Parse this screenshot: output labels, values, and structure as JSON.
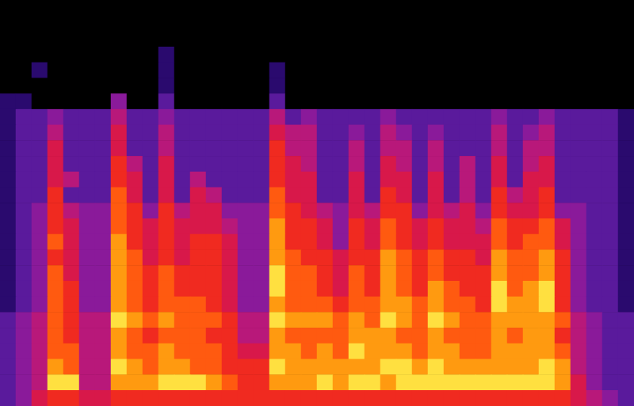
{
  "chart_data": {
    "type": "heatmap",
    "tick_labels": false,
    "grid": false,
    "zlim": [
      0,
      9
    ],
    "cells": [
      [
        0,
        0,
        0,
        0,
        0,
        0,
        0,
        0,
        0,
        0,
        0,
        0,
        0,
        0,
        0,
        0,
        0,
        0,
        0,
        0,
        0,
        0,
        0,
        0,
        0,
        0,
        0,
        0,
        0,
        0,
        0,
        0,
        0,
        0,
        0,
        0,
        0,
        0,
        0,
        0
      ],
      [
        0,
        0,
        0,
        0,
        0,
        0,
        0,
        0,
        0,
        0,
        0,
        0,
        0,
        0,
        0,
        0,
        0,
        0,
        0,
        0,
        0,
        0,
        0,
        0,
        0,
        0,
        0,
        0,
        0,
        0,
        0,
        0,
        0,
        0,
        0,
        0,
        0,
        0,
        0,
        0
      ],
      [
        0,
        0,
        0,
        0,
        0,
        0,
        0,
        0,
        0,
        0,
        0,
        0,
        0,
        0,
        0,
        0,
        0,
        0,
        0,
        0,
        0,
        0,
        0,
        0,
        0,
        0,
        0,
        0,
        0,
        0,
        0,
        0,
        0,
        0,
        0,
        0,
        0,
        0,
        0,
        0
      ],
      [
        0,
        0,
        0,
        0,
        0,
        0,
        0,
        0,
        0,
        0,
        1,
        0,
        0,
        0,
        0,
        0,
        0,
        0,
        0,
        0,
        0,
        0,
        0,
        0,
        0,
        0,
        0,
        0,
        0,
        0,
        0,
        0,
        0,
        0,
        0,
        0,
        0,
        0,
        0,
        0
      ],
      [
        0,
        0,
        1,
        0,
        0,
        0,
        0,
        0,
        0,
        0,
        1,
        0,
        0,
        0,
        0,
        0,
        0,
        1,
        0,
        0,
        0,
        0,
        0,
        0,
        0,
        0,
        0,
        0,
        0,
        0,
        0,
        0,
        0,
        0,
        0,
        0,
        0,
        0,
        0,
        0
      ],
      [
        0,
        0,
        0,
        0,
        0,
        0,
        0,
        0,
        0,
        0,
        1,
        0,
        0,
        0,
        0,
        0,
        0,
        1,
        0,
        0,
        0,
        0,
        0,
        0,
        0,
        0,
        0,
        0,
        0,
        0,
        0,
        0,
        0,
        0,
        0,
        0,
        0,
        0,
        0,
        0
      ],
      [
        1,
        1,
        0,
        0,
        0,
        0,
        0,
        3,
        0,
        0,
        2,
        0,
        0,
        0,
        0,
        0,
        0,
        2,
        0,
        0,
        0,
        0,
        0,
        0,
        0,
        0,
        0,
        0,
        0,
        0,
        0,
        0,
        0,
        0,
        0,
        0,
        0,
        0,
        0,
        0
      ],
      [
        1,
        2,
        2,
        3,
        2,
        2,
        2,
        4,
        2,
        2,
        3,
        2,
        2,
        2,
        2,
        2,
        2,
        4,
        2,
        3,
        2,
        2,
        2,
        2,
        3,
        2,
        2,
        2,
        2,
        2,
        2,
        3,
        2,
        2,
        3,
        2,
        2,
        2,
        2,
        1
      ],
      [
        1,
        2,
        2,
        4,
        2,
        2,
        2,
        5,
        2,
        2,
        4,
        2,
        2,
        2,
        2,
        2,
        2,
        5,
        4,
        4,
        2,
        2,
        3,
        2,
        4,
        3,
        2,
        3,
        2,
        2,
        2,
        4,
        2,
        3,
        4,
        2,
        2,
        2,
        2,
        1
      ],
      [
        1,
        2,
        2,
        5,
        2,
        2,
        2,
        5,
        2,
        2,
        4,
        2,
        2,
        2,
        2,
        2,
        2,
        6,
        4,
        4,
        2,
        2,
        4,
        2,
        4,
        4,
        2,
        4,
        2,
        2,
        2,
        4,
        2,
        4,
        4,
        2,
        2,
        2,
        2,
        1
      ],
      [
        1,
        2,
        2,
        5,
        2,
        2,
        2,
        6,
        4,
        2,
        5,
        2,
        2,
        2,
        2,
        2,
        2,
        6,
        5,
        4,
        2,
        2,
        4,
        2,
        5,
        4,
        2,
        4,
        2,
        4,
        2,
        5,
        2,
        4,
        5,
        2,
        2,
        2,
        2,
        1
      ],
      [
        1,
        2,
        2,
        5,
        4,
        2,
        2,
        6,
        5,
        2,
        5,
        2,
        4,
        2,
        2,
        2,
        2,
        6,
        5,
        5,
        2,
        2,
        5,
        2,
        5,
        5,
        2,
        5,
        2,
        4,
        2,
        5,
        2,
        5,
        5,
        2,
        2,
        2,
        2,
        1
      ],
      [
        1,
        2,
        2,
        6,
        2,
        2,
        2,
        7,
        5,
        2,
        5,
        2,
        5,
        4,
        2,
        2,
        2,
        7,
        5,
        5,
        2,
        2,
        5,
        2,
        6,
        5,
        2,
        5,
        2,
        4,
        2,
        6,
        4,
        5,
        6,
        2,
        2,
        2,
        2,
        1
      ],
      [
        1,
        2,
        3,
        6,
        4,
        3,
        3,
        7,
        6,
        3,
        6,
        4,
        5,
        5,
        3,
        3,
        3,
        7,
        6,
        5,
        4,
        3,
        5,
        4,
        6,
        6,
        3,
        5,
        4,
        5,
        3,
        6,
        5,
        5,
        6,
        3,
        3,
        2,
        2,
        1
      ],
      [
        1,
        2,
        3,
        6,
        5,
        3,
        3,
        7,
        6,
        5,
        6,
        5,
        5,
        5,
        4,
        3,
        3,
        8,
        6,
        6,
        5,
        3,
        6,
        5,
        7,
        6,
        5,
        6,
        5,
        5,
        4,
        7,
        6,
        6,
        7,
        5,
        3,
        2,
        2,
        1
      ],
      [
        1,
        2,
        3,
        7,
        5,
        3,
        3,
        8,
        6,
        5,
        6,
        5,
        6,
        6,
        5,
        3,
        3,
        8,
        6,
        6,
        5,
        3,
        6,
        5,
        7,
        6,
        5,
        6,
        5,
        5,
        5,
        7,
        6,
        7,
        7,
        5,
        3,
        2,
        2,
        1
      ],
      [
        1,
        2,
        3,
        6,
        5,
        3,
        3,
        8,
        7,
        5,
        6,
        5,
        6,
        6,
        5,
        3,
        3,
        8,
        7,
        6,
        6,
        5,
        6,
        6,
        8,
        7,
        6,
        7,
        6,
        6,
        5,
        8,
        7,
        7,
        8,
        6,
        3,
        2,
        2,
        1
      ],
      [
        1,
        2,
        3,
        7,
        5,
        3,
        3,
        8,
        7,
        6,
        7,
        6,
        6,
        6,
        5,
        3,
        3,
        9,
        7,
        7,
        6,
        5,
        7,
        6,
        8,
        7,
        6,
        7,
        6,
        6,
        6,
        8,
        7,
        7,
        8,
        6,
        3,
        2,
        2,
        1
      ],
      [
        1,
        2,
        3,
        7,
        6,
        3,
        3,
        8,
        7,
        6,
        7,
        6,
        6,
        6,
        5,
        3,
        3,
        9,
        7,
        7,
        6,
        5,
        7,
        6,
        8,
        7,
        6,
        8,
        7,
        6,
        6,
        9,
        7,
        8,
        9,
        6,
        3,
        2,
        2,
        1
      ],
      [
        1,
        2,
        3,
        7,
        6,
        3,
        3,
        8,
        7,
        6,
        7,
        7,
        7,
        6,
        5,
        3,
        3,
        8,
        7,
        7,
        7,
        6,
        7,
        7,
        8,
        8,
        7,
        8,
        7,
        7,
        6,
        9,
        8,
        8,
        9,
        6,
        3,
        2,
        2,
        1
      ],
      [
        2,
        3,
        4,
        7,
        6,
        4,
        4,
        9,
        8,
        7,
        8,
        7,
        7,
        7,
        6,
        4,
        4,
        9,
        8,
        8,
        8,
        7,
        8,
        7,
        9,
        8,
        7,
        9,
        8,
        7,
        7,
        8,
        8,
        8,
        8,
        7,
        4,
        3,
        2,
        2
      ],
      [
        2,
        3,
        4,
        7,
        6,
        4,
        4,
        8,
        7,
        6,
        7,
        7,
        7,
        6,
        6,
        4,
        4,
        8,
        7,
        7,
        7,
        7,
        8,
        8,
        8,
        7,
        7,
        8,
        7,
        7,
        7,
        8,
        7,
        8,
        8,
        6,
        4,
        3,
        2,
        2
      ],
      [
        2,
        3,
        4,
        7,
        7,
        4,
        4,
        8,
        7,
        7,
        8,
        7,
        7,
        7,
        6,
        5,
        5,
        8,
        8,
        7,
        8,
        7,
        9,
        8,
        8,
        8,
        7,
        8,
        8,
        7,
        7,
        8,
        8,
        8,
        8,
        7,
        4,
        3,
        2,
        2
      ],
      [
        2,
        3,
        4,
        8,
        7,
        4,
        4,
        9,
        8,
        7,
        8,
        8,
        7,
        7,
        6,
        6,
        6,
        9,
        8,
        8,
        8,
        8,
        8,
        8,
        9,
        9,
        8,
        9,
        8,
        8,
        8,
        8,
        8,
        8,
        9,
        8,
        4,
        3,
        2,
        2
      ],
      [
        2,
        3,
        4,
        9,
        9,
        4,
        4,
        8,
        8,
        8,
        9,
        9,
        9,
        8,
        7,
        6,
        6,
        8,
        8,
        8,
        9,
        8,
        9,
        9,
        8,
        9,
        9,
        9,
        9,
        9,
        9,
        9,
        9,
        9,
        9,
        8,
        5,
        3,
        2,
        2
      ],
      [
        2,
        3,
        5,
        6,
        6,
        5,
        5,
        6,
        6,
        6,
        6,
        6,
        6,
        6,
        6,
        6,
        6,
        6,
        6,
        6,
        6,
        6,
        6,
        6,
        6,
        6,
        6,
        6,
        6,
        6,
        6,
        6,
        6,
        6,
        6,
        6,
        5,
        4,
        3,
        2
      ]
    ]
  }
}
